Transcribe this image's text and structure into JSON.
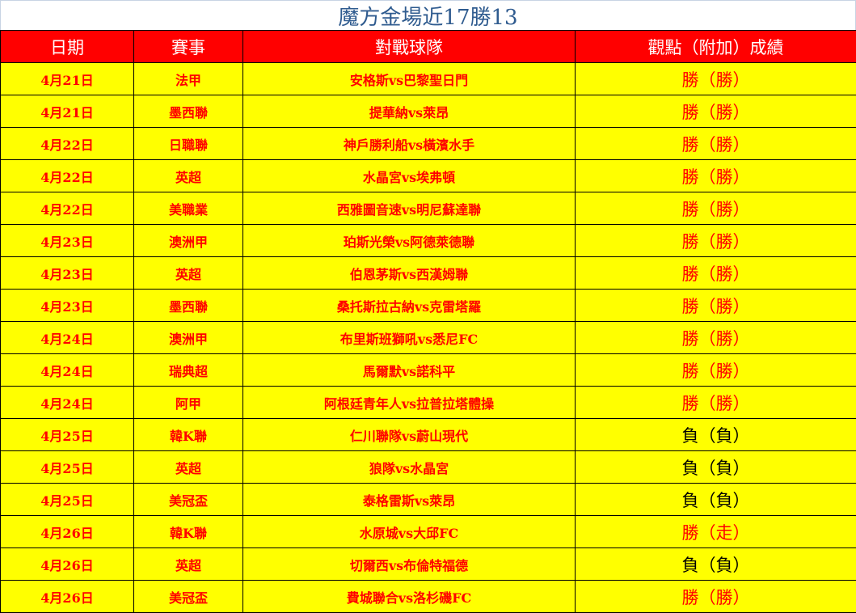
{
  "title": "魔方金場近17勝13",
  "headers": [
    "日期",
    "賽事",
    "對戰球隊",
    "觀點（附加）成績"
  ],
  "colors": {
    "header_bg": "#ff0000",
    "row_bg": "#ffff00",
    "win_text": "#ff0000",
    "loss_text": "#000000",
    "title": "#2f5b8f"
  },
  "rows": [
    {
      "date": "4月21日",
      "league": "法甲",
      "match": "安格斯vs巴黎聖日門",
      "result": "勝（勝）",
      "win": true
    },
    {
      "date": "4月21日",
      "league": "墨西聯",
      "match": "提華納vs萊昂",
      "result": "勝（勝）",
      "win": true
    },
    {
      "date": "4月22日",
      "league": "日職聯",
      "match": "神戶勝利船vs橫濱水手",
      "result": "勝（勝）",
      "win": true
    },
    {
      "date": "4月22日",
      "league": "英超",
      "match": "水晶宮vs埃弗頓",
      "result": "勝（勝）",
      "win": true
    },
    {
      "date": "4月22日",
      "league": "美職業",
      "match": "西雅圖音速vs明尼蘇達聯",
      "result": "勝（勝）",
      "win": true
    },
    {
      "date": "4月23日",
      "league": "澳洲甲",
      "match": "珀斯光榮vs阿德萊德聯",
      "result": "勝（勝）",
      "win": true
    },
    {
      "date": "4月23日",
      "league": "英超",
      "match": "伯恩茅斯vs西漢姆聯",
      "result": "勝（勝）",
      "win": true
    },
    {
      "date": "4月23日",
      "league": "墨西聯",
      "match": "桑托斯拉古納vs克雷塔羅",
      "result": "勝（勝）",
      "win": true
    },
    {
      "date": "4月24日",
      "league": "澳洲甲",
      "match": "布里斯班獅吼vs悉尼FC",
      "result": "勝（勝）",
      "win": true
    },
    {
      "date": "4月24日",
      "league": "瑞典超",
      "match": "馬爾默vs諾科平",
      "result": "勝（勝）",
      "win": true
    },
    {
      "date": "4月24日",
      "league": "阿甲",
      "match": "阿根廷青年人vs拉普拉塔體操",
      "result": "勝（勝）",
      "win": true
    },
    {
      "date": "4月25日",
      "league": "韓K聯",
      "match": "仁川聯隊vs蔚山現代",
      "result": "負（負）",
      "win": false
    },
    {
      "date": "4月25日",
      "league": "英超",
      "match": "狼隊vs水晶宮",
      "result": "負（負）",
      "win": false
    },
    {
      "date": "4月25日",
      "league": "美冠盃",
      "match": "泰格雷斯vs萊昂",
      "result": "負（負）",
      "win": false
    },
    {
      "date": "4月26日",
      "league": "韓K聯",
      "match": "水原城vs大邱FC",
      "result": "勝（走）",
      "win": true
    },
    {
      "date": "4月26日",
      "league": "英超",
      "match": "切爾西vs布倫特福德",
      "result": "負（負）",
      "win": false
    },
    {
      "date": "4月26日",
      "league": "美冠盃",
      "match": "費城聯合vs洛杉磯FC",
      "result": "勝（勝）",
      "win": true
    }
  ]
}
